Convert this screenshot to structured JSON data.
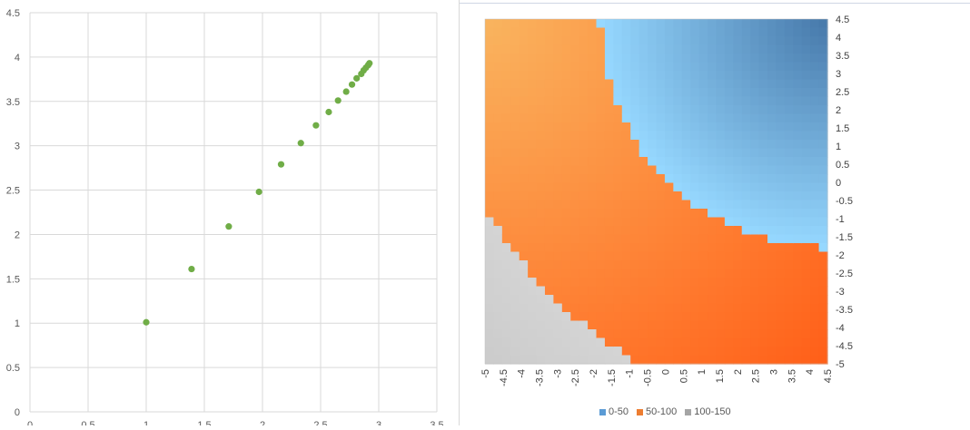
{
  "chart_data": [
    {
      "type": "scatter",
      "title": "",
      "xlabel": "",
      "ylabel": "",
      "xlim": [
        0,
        3.5
      ],
      "ylim": [
        0,
        4.5
      ],
      "grid": true,
      "x_ticks": [
        "0",
        "0.5",
        "1",
        "1.5",
        "2",
        "2.5",
        "3",
        "3.5"
      ],
      "y_ticks": [
        "0",
        "0.5",
        "1",
        "1.5",
        "2",
        "2.5",
        "3",
        "3.5",
        "4",
        "4.5"
      ],
      "marker_color": "#70ad47",
      "series": [
        {
          "points": [
            [
              1.0,
              1.01
            ],
            [
              1.39,
              1.61
            ],
            [
              1.71,
              2.09
            ],
            [
              1.97,
              2.48
            ],
            [
              2.16,
              2.79
            ],
            [
              2.33,
              3.03
            ],
            [
              2.46,
              3.23
            ],
            [
              2.57,
              3.38
            ],
            [
              2.65,
              3.51
            ],
            [
              2.72,
              3.61
            ],
            [
              2.77,
              3.69
            ],
            [
              2.81,
              3.76
            ],
            [
              2.85,
              3.81
            ],
            [
              2.87,
              3.85
            ],
            [
              2.89,
              3.88
            ],
            [
              2.91,
              3.91
            ],
            [
              2.92,
              3.93
            ]
          ]
        }
      ]
    },
    {
      "type": "heatmap",
      "title": "",
      "xlim": [
        -5,
        4.5
      ],
      "ylim": [
        -5,
        4.5
      ],
      "x_ticks": [
        "-5",
        "-4.5",
        "-4",
        "-3.5",
        "-3",
        "-2.5",
        "-2",
        "-1.5",
        "-1",
        "-0.5",
        "0",
        "0.5",
        "1",
        "1.5",
        "2",
        "2.5",
        "3",
        "3.5",
        "4",
        "4.5"
      ],
      "y_ticks": [
        "4.5",
        "4",
        "3.5",
        "3",
        "2.5",
        "2",
        "1.5",
        "1",
        "0.5",
        "0",
        "-0.5",
        "-1",
        "-1.5",
        "-2",
        "-2.5",
        "-3",
        "-3.5",
        "-4",
        "-4.5",
        "-5"
      ],
      "bands": [
        {
          "name": "0-50",
          "color": "#5b9bd5"
        },
        {
          "name": "50-100",
          "color": "#ed7d31"
        },
        {
          "name": "100-150",
          "color": "#a5a5a5"
        }
      ],
      "legend_position": "bottom"
    }
  ]
}
